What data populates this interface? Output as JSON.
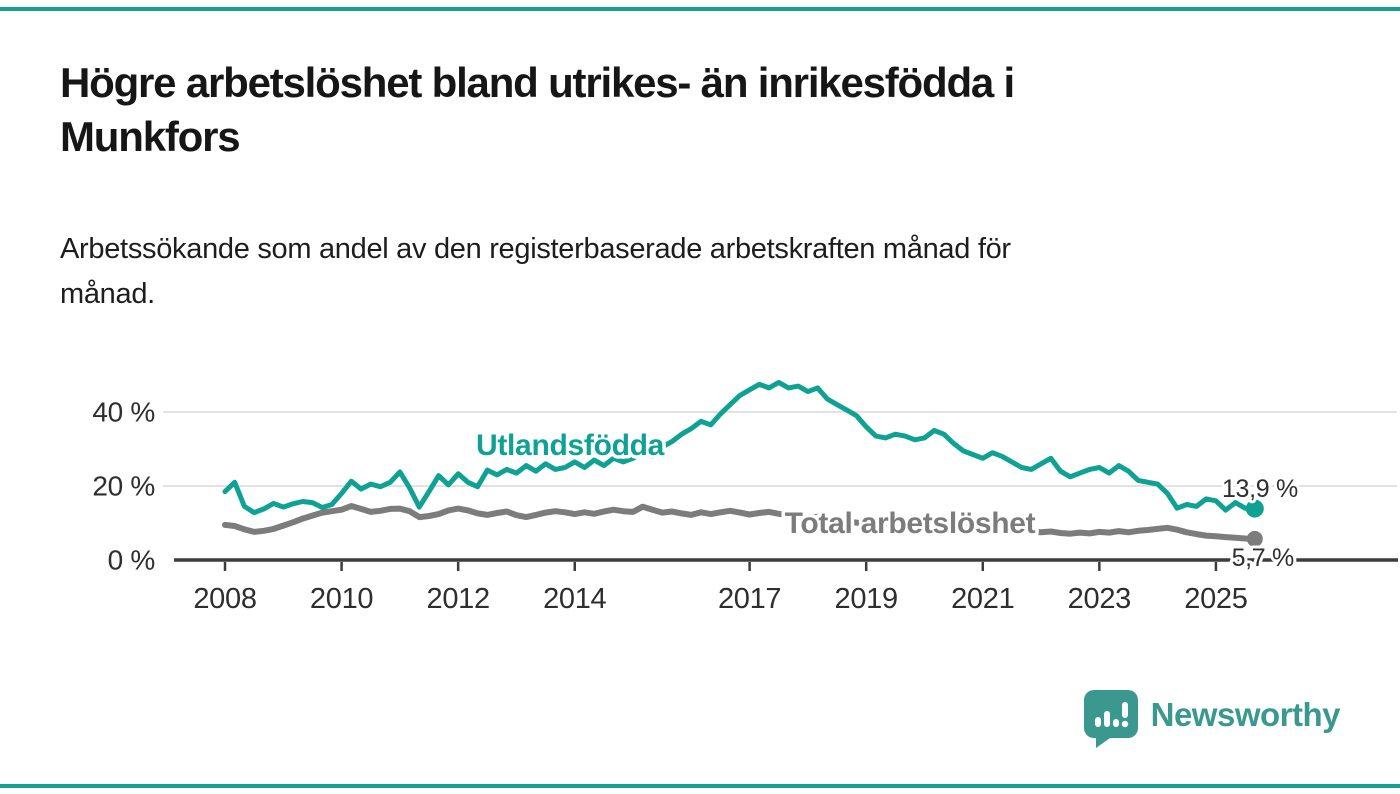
{
  "page": {
    "background": "#ffffff",
    "accent_line_color": "#14a093"
  },
  "header": {
    "title": "Högre arbetslöshet bland utrikes- än inrikesfödda i Munkfors",
    "title_lines": [
      "Högre arbetslöshet bland utrikes- än inrikesfödda i",
      "Munkfors"
    ],
    "subtitle": "Arbetssökande som andel av den registerbaserade arbetskraften månad för månad.",
    "subtitle_lines": [
      "Arbetssökande som andel av den registerbaserade arbetskraften månad för",
      "månad."
    ]
  },
  "chart_data": {
    "type": "line",
    "x_unit": "year (monthly samples, plotted every 2 months)",
    "x_start": 2008.0,
    "x_step_years": 0.166667,
    "xlim": [
      2007.1,
      2028.1
    ],
    "ylim": [
      0,
      50
    ],
    "grid": "horizontal only",
    "x_ticks": [
      2008,
      2010,
      2012,
      2014,
      2017,
      2019,
      2021,
      2023,
      2025
    ],
    "y_ticks": [
      {
        "label": "0 %",
        "value": 0
      },
      {
        "label": "20 %",
        "value": 20
      },
      {
        "label": "40 %",
        "value": 40
      }
    ],
    "series": [
      {
        "name": "Utlandsfödda",
        "color": "#0fa294",
        "end_label": "13,9 %",
        "end_value": 13.9,
        "values": [
          18.5,
          21.0,
          14.5,
          12.8,
          13.8,
          15.3,
          14.3,
          15.2,
          15.8,
          15.5,
          14.2,
          15.0,
          18.0,
          21.3,
          19.2,
          20.5,
          19.8,
          21.0,
          23.8,
          19.5,
          14.3,
          18.5,
          22.8,
          20.3,
          23.3,
          21.0,
          19.8,
          24.3,
          23.0,
          24.5,
          23.5,
          25.5,
          24.0,
          26.0,
          24.5,
          25.0,
          26.5,
          25.0,
          27.0,
          25.5,
          27.5,
          26.5,
          27.5,
          29.0,
          28.0,
          30.5,
          32.0,
          34.0,
          35.5,
          37.5,
          36.5,
          39.5,
          42.0,
          44.5,
          46.0,
          47.5,
          46.5,
          48.0,
          46.5,
          47.0,
          45.5,
          46.5,
          43.5,
          42.0,
          40.5,
          39.0,
          36.0,
          33.5,
          33.0,
          34.0,
          33.5,
          32.5,
          33.0,
          35.0,
          34.0,
          31.5,
          29.5,
          28.5,
          27.5,
          29.0,
          28.0,
          26.5,
          25.0,
          24.5,
          26.0,
          27.5,
          24.0,
          22.5,
          23.5,
          24.5,
          25.0,
          23.5,
          25.5,
          24.0,
          21.5,
          21.0,
          20.5,
          18.0,
          14.0,
          15.0,
          14.5,
          16.5,
          16.0,
          13.5,
          15.5,
          14.0,
          13.9
        ]
      },
      {
        "name": "Total arbetslöshet",
        "color": "#7c7c7c",
        "end_label": "5,7 %",
        "end_value": 5.7,
        "values": [
          9.5,
          9.2,
          8.3,
          7.6,
          7.9,
          8.4,
          9.3,
          10.2,
          11.2,
          12.0,
          12.8,
          13.2,
          13.6,
          14.6,
          13.8,
          13.0,
          13.3,
          13.8,
          13.9,
          13.2,
          11.6,
          11.9,
          12.4,
          13.4,
          13.9,
          13.4,
          12.6,
          12.2,
          12.7,
          13.1,
          12.1,
          11.6,
          12.2,
          12.8,
          13.2,
          12.9,
          12.4,
          12.9,
          12.5,
          13.1,
          13.6,
          13.2,
          13.0,
          14.4,
          13.6,
          12.8,
          13.1,
          12.6,
          12.2,
          12.9,
          12.4,
          12.9,
          13.3,
          12.8,
          12.3,
          12.7,
          13.0,
          12.5,
          12.1,
          11.8,
          11.4,
          11.7,
          11.1,
          10.7,
          10.4,
          10.1,
          9.8,
          10.1,
          9.7,
          9.4,
          9.6,
          9.3,
          9.5,
          10.3,
          10.0,
          9.6,
          9.2,
          8.9,
          8.7,
          8.9,
          8.5,
          8.2,
          7.9,
          7.7,
          7.5,
          7.7,
          7.3,
          7.1,
          7.4,
          7.2,
          7.6,
          7.4,
          7.8,
          7.5,
          7.9,
          8.1,
          8.4,
          8.7,
          8.2,
          7.5,
          7.0,
          6.6,
          6.4,
          6.2,
          6.0,
          5.8,
          5.7
        ]
      }
    ]
  },
  "footer": {
    "brand": "Newsworthy",
    "brand_color": "#3a988f",
    "logo_icon": "newsworthy-speech-bubble-bar-chart-icon"
  }
}
